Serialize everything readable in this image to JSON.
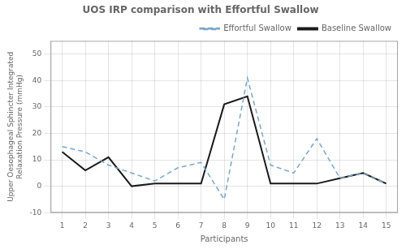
{
  "chart_data": {
    "type": "line",
    "title": "UOS IRP comparison with Effortful Swallow",
    "x_label": "Participants",
    "y_label": "Upper Oesophageal Sphincter Integrated\nRelaxation Pressure (mmHg)",
    "x": [
      1,
      2,
      3,
      4,
      5,
      6,
      7,
      8,
      9,
      10,
      11,
      12,
      13,
      14,
      15
    ],
    "series": [
      {
        "name": "Effortful Swallow",
        "color": "#7ba7c9",
        "line_style": "dashed",
        "marker": "none",
        "values": [
          15,
          13,
          8,
          5,
          2,
          7,
          9,
          -5,
          41,
          8,
          5,
          18,
          3,
          5,
          1
        ]
      },
      {
        "name": "Baseline Swallow",
        "color": "#1a1a1a",
        "line_style": "solid",
        "marker": "none",
        "values": [
          13,
          6,
          11,
          0,
          1,
          1,
          1,
          31,
          34,
          1,
          1,
          1,
          3,
          5,
          1
        ]
      }
    ],
    "xlim": [
      0.5,
      15.5
    ],
    "xticks": [
      1,
      2,
      3,
      4,
      5,
      6,
      7,
      8,
      9,
      10,
      11,
      12,
      13,
      14,
      15
    ],
    "ylim": [
      -10,
      55
    ],
    "yticks": [
      -10,
      0,
      10,
      20,
      30,
      40,
      50
    ],
    "grid": true,
    "legend": "upper right"
  }
}
